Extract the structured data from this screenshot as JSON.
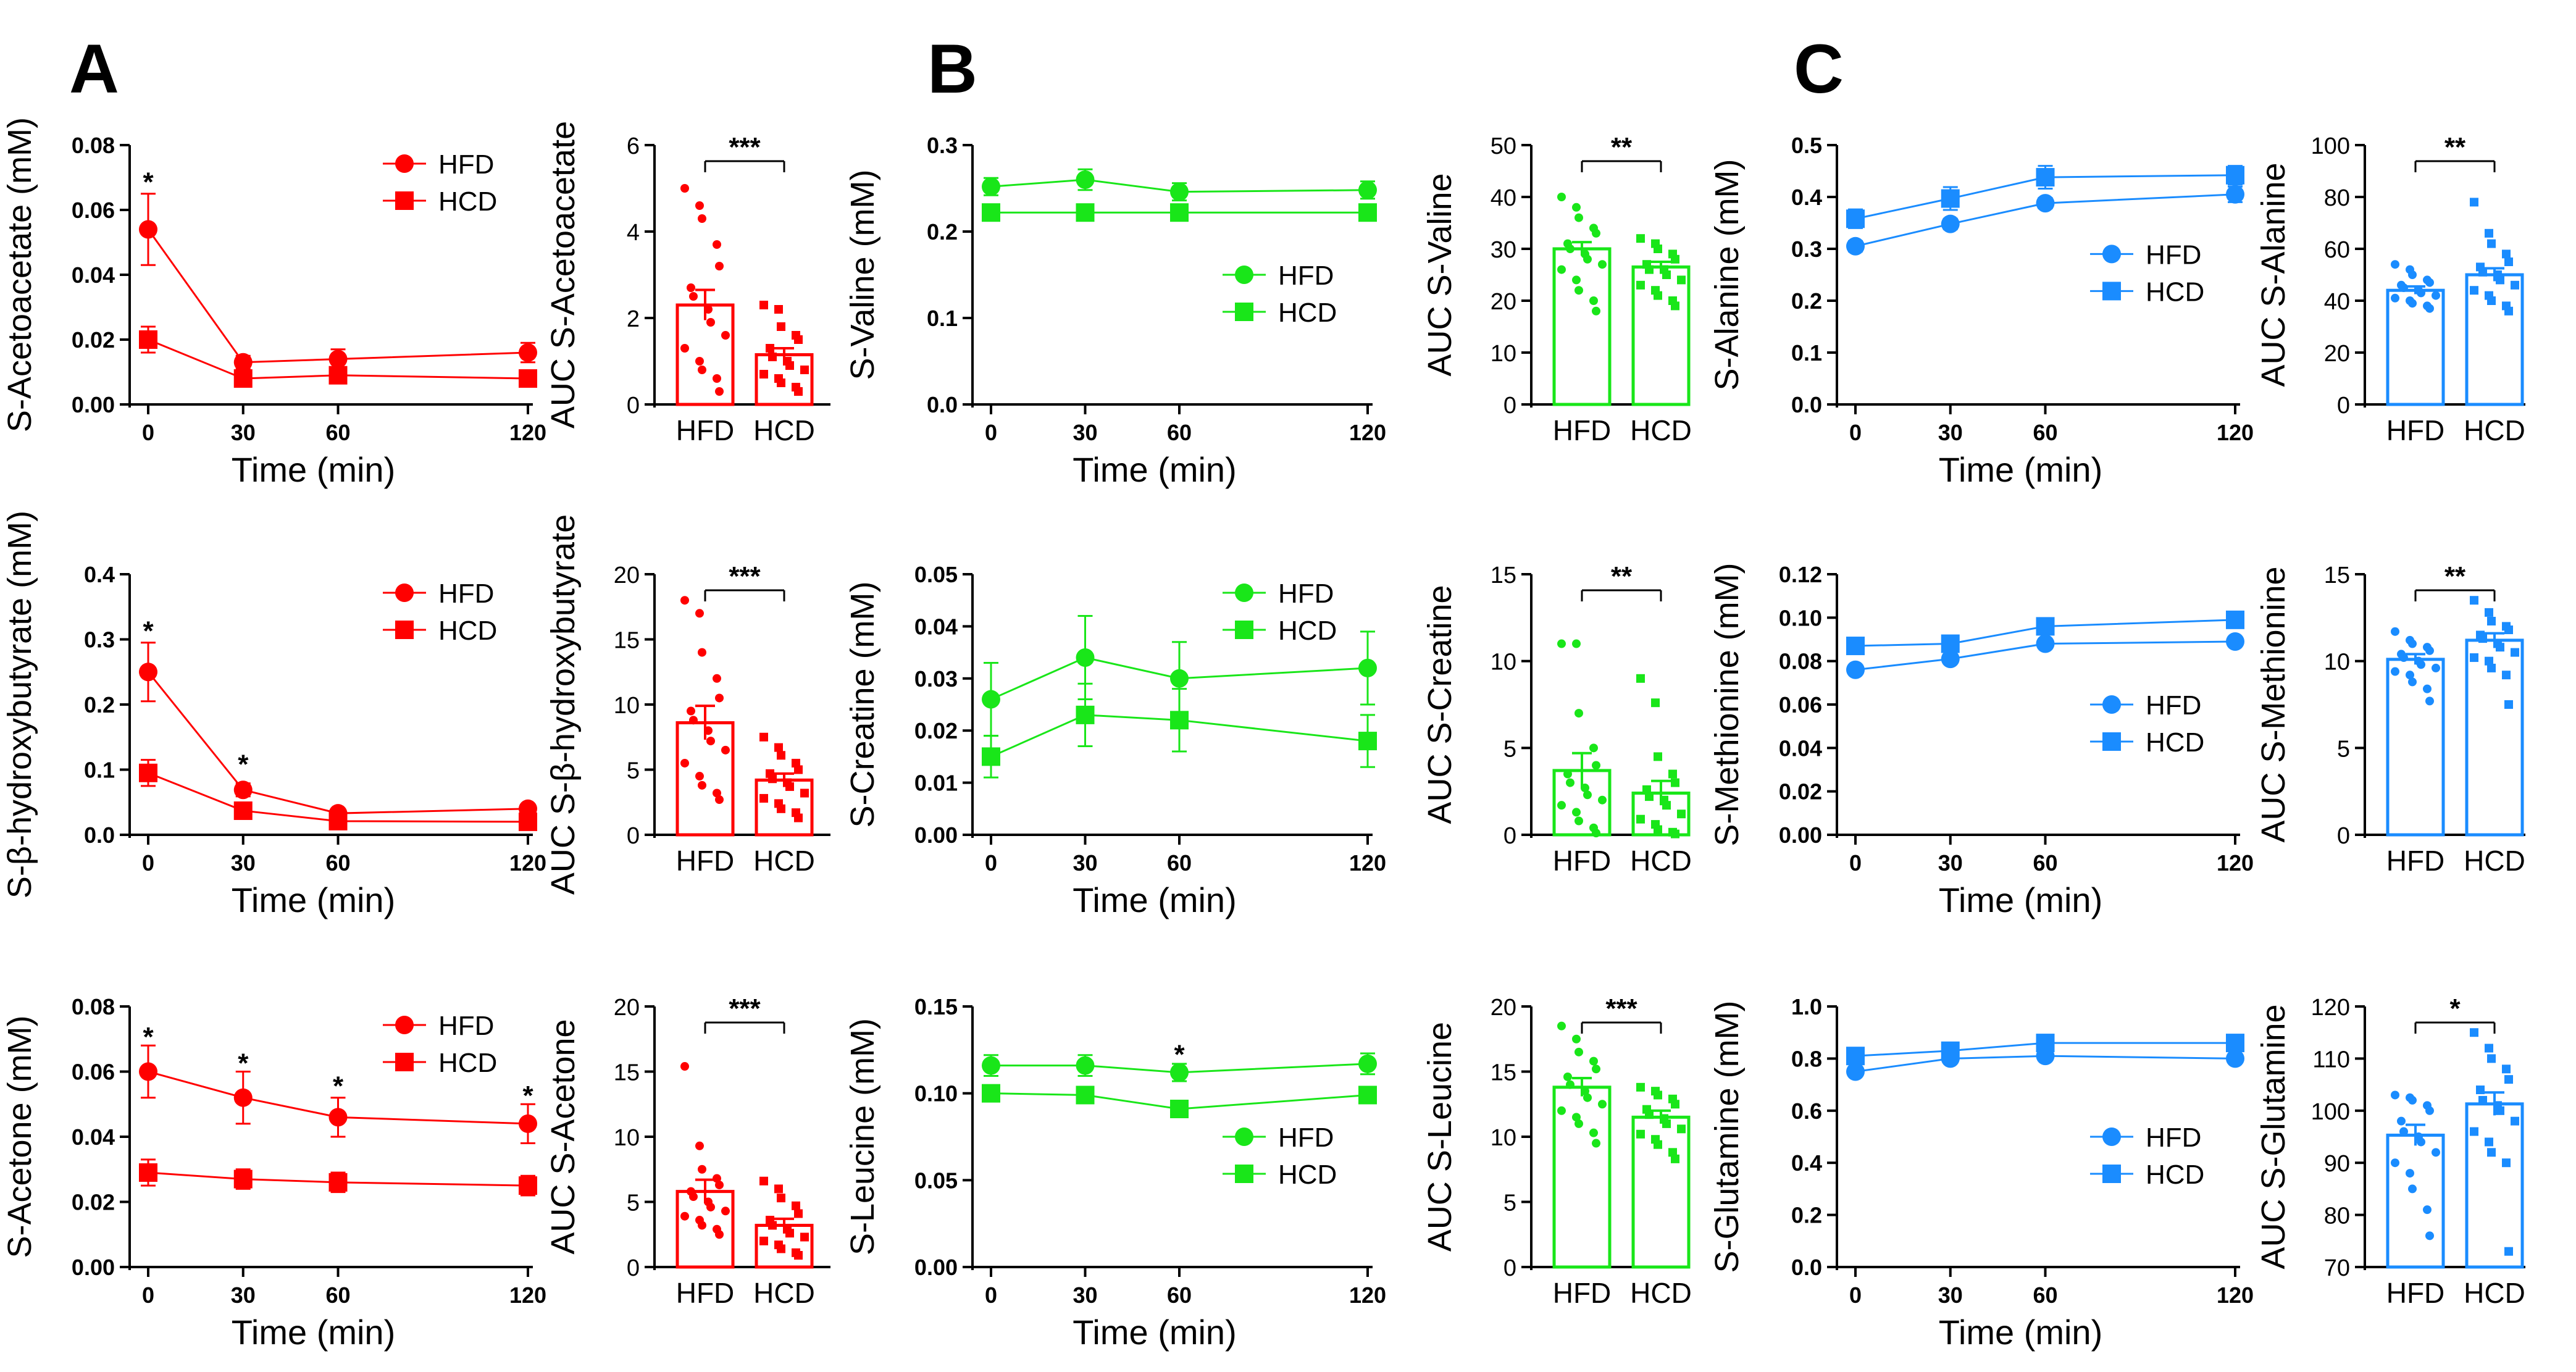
{
  "figure": {
    "panel_labels": [
      "A",
      "B",
      "C"
    ]
  },
  "colors": {
    "A": "#ff0000",
    "B": "#19e619",
    "C": "#1a8cff",
    "axis": "#000000"
  },
  "chart_data": [
    {
      "type": "line",
      "panel": "A",
      "row": 0,
      "ylabel": "S-Acetoacetate (mM)",
      "xlabel": "Time (min)",
      "x": [
        0,
        30,
        60,
        120
      ],
      "xticks": [
        "0",
        "30",
        "60",
        "120"
      ],
      "ylim": [
        0,
        0.08
      ],
      "yticks": [
        "0.00",
        "0.02",
        "0.04",
        "0.06",
        "0.08"
      ],
      "legend_pos": "top-right",
      "series": [
        {
          "name": "HFD",
          "marker": "circle",
          "values": [
            0.054,
            0.013,
            0.014,
            0.016
          ],
          "err": [
            0.011,
            0.002,
            0.003,
            0.003
          ]
        },
        {
          "name": "HCD",
          "marker": "square",
          "values": [
            0.02,
            0.008,
            0.009,
            0.008
          ],
          "err": [
            0.004,
            0.002,
            0.002,
            0.002
          ]
        }
      ],
      "annotations": [
        {
          "x": 0,
          "y": 0.07,
          "text": "*"
        }
      ]
    },
    {
      "type": "bar",
      "panel": "A",
      "row": 0,
      "ylabel": "AUC S-Acetoacetate",
      "categories": [
        "HFD",
        "HCD"
      ],
      "values": [
        2.3,
        1.15
      ],
      "err": [
        0.35,
        0.15
      ],
      "ylim": [
        0,
        6
      ],
      "yticks": [
        "0",
        "2",
        "4",
        "6"
      ],
      "points": [
        [
          5.0,
          4.6,
          4.3,
          3.7,
          3.2,
          2.7,
          2.5,
          2.2,
          1.9,
          1.6,
          1.3,
          1.0,
          0.8,
          0.6,
          0.3
        ],
        [
          2.3,
          2.2,
          1.8,
          1.6,
          1.5,
          1.3,
          1.1,
          1.0,
          0.9,
          0.8,
          0.7,
          0.6,
          0.5,
          0.4,
          0.3
        ]
      ],
      "significance": "***"
    },
    {
      "type": "line",
      "panel": "B",
      "row": 0,
      "ylabel": "S-Valine (mM)",
      "xlabel": "Time (min)",
      "x": [
        0,
        30,
        60,
        120
      ],
      "xticks": [
        "0",
        "30",
        "60",
        "120"
      ],
      "ylim": [
        0,
        0.3
      ],
      "yticks": [
        "0.0",
        "0.1",
        "0.2",
        "0.3"
      ],
      "legend_pos": "bottom-right",
      "series": [
        {
          "name": "HFD",
          "marker": "circle",
          "values": [
            0.252,
            0.26,
            0.246,
            0.248
          ],
          "err": [
            0.01,
            0.012,
            0.01,
            0.01
          ]
        },
        {
          "name": "HCD",
          "marker": "square",
          "values": [
            0.222,
            0.222,
            0.222,
            0.222
          ],
          "err": [
            0.008,
            0.008,
            0.008,
            0.008
          ]
        }
      ],
      "annotations": []
    },
    {
      "type": "bar",
      "panel": "B",
      "row": 0,
      "ylabel": "AUC S-Valine",
      "categories": [
        "HFD",
        "HCD"
      ],
      "values": [
        30,
        26.5
      ],
      "err": [
        1.3,
        1.0
      ],
      "ylim": [
        0,
        50
      ],
      "yticks": [
        "0",
        "10",
        "20",
        "30",
        "40",
        "50"
      ],
      "points": [
        [
          40,
          38,
          36,
          34,
          33,
          31,
          30,
          29,
          28,
          27,
          26,
          24,
          22,
          20,
          18
        ],
        [
          32,
          31,
          30,
          29,
          28,
          27,
          26,
          26,
          25,
          24,
          23,
          22,
          21,
          20,
          19
        ]
      ],
      "significance": "**"
    },
    {
      "type": "line",
      "panel": "C",
      "row": 0,
      "ylabel": "S-Alanine (mM)",
      "xlabel": "Time (min)",
      "x": [
        0,
        30,
        60,
        120
      ],
      "xticks": [
        "0",
        "30",
        "60",
        "120"
      ],
      "ylim": [
        0,
        0.5
      ],
      "yticks": [
        "0.0",
        "0.1",
        "0.2",
        "0.3",
        "0.4",
        "0.5"
      ],
      "legend_pos": "middle-right",
      "series": [
        {
          "name": "HFD",
          "marker": "circle",
          "values": [
            0.305,
            0.348,
            0.388,
            0.405
          ],
          "err": [
            0.01,
            0.01,
            0.01,
            0.015
          ]
        },
        {
          "name": "HCD",
          "marker": "square",
          "values": [
            0.358,
            0.397,
            0.438,
            0.442
          ],
          "err": [
            0.018,
            0.022,
            0.022,
            0.018
          ]
        }
      ],
      "annotations": []
    },
    {
      "type": "bar",
      "panel": "C",
      "row": 0,
      "ylabel": "AUC S-Alanine",
      "categories": [
        "HFD",
        "HCD"
      ],
      "values": [
        44,
        50
      ],
      "err": [
        1.5,
        2.5
      ],
      "ylim": [
        0,
        100
      ],
      "yticks": [
        "0",
        "20",
        "40",
        "60",
        "80",
        "100"
      ],
      "points": [
        [
          54,
          52,
          50,
          48,
          47,
          46,
          45,
          44,
          43,
          42,
          41,
          40,
          39,
          38,
          37
        ],
        [
          78,
          66,
          62,
          58,
          55,
          53,
          51,
          50,
          48,
          46,
          44,
          42,
          40,
          38,
          36
        ]
      ],
      "significance": "**"
    },
    {
      "type": "line",
      "panel": "A",
      "row": 1,
      "ylabel": "S-β-hydroxybutyrate (mM)",
      "xlabel": "Time (min)",
      "x": [
        0,
        30,
        60,
        120
      ],
      "xticks": [
        "0",
        "30",
        "60",
        "120"
      ],
      "ylim": [
        0,
        0.4
      ],
      "yticks": [
        "0.0",
        "0.1",
        "0.2",
        "0.3",
        "0.4"
      ],
      "legend_pos": "top-right",
      "series": [
        {
          "name": "HFD",
          "marker": "circle",
          "values": [
            0.25,
            0.069,
            0.033,
            0.04
          ],
          "err": [
            0.045,
            0.01,
            0.005,
            0.006
          ]
        },
        {
          "name": "HCD",
          "marker": "square",
          "values": [
            0.095,
            0.037,
            0.021,
            0.02
          ],
          "err": [
            0.02,
            0.007,
            0.004,
            0.004
          ]
        }
      ],
      "annotations": [
        {
          "x": 0,
          "y": 0.32,
          "text": "*"
        },
        {
          "x": 30,
          "y": 0.115,
          "text": "*"
        }
      ]
    },
    {
      "type": "bar",
      "panel": "A",
      "row": 1,
      "ylabel": "AUC S-β-hydroxybutyrate",
      "categories": [
        "HFD",
        "HCD"
      ],
      "values": [
        8.6,
        4.2
      ],
      "err": [
        1.3,
        0.5
      ],
      "ylim": [
        0,
        20
      ],
      "yticks": [
        "0",
        "5",
        "10",
        "15",
        "20"
      ],
      "points": [
        [
          18,
          17,
          14,
          12,
          10.5,
          9.5,
          8.8,
          8,
          7.2,
          6.5,
          5.5,
          4.5,
          3.8,
          3.2,
          2.7
        ],
        [
          7.5,
          6.7,
          6.1,
          5.5,
          5,
          4.7,
          4.3,
          4,
          3.7,
          3.2,
          2.8,
          2.4,
          2,
          1.7,
          1.3
        ]
      ],
      "significance": "***"
    },
    {
      "type": "line",
      "panel": "B",
      "row": 1,
      "ylabel": "S-Creatine (mM)",
      "xlabel": "Time (min)",
      "x": [
        0,
        30,
        60,
        120
      ],
      "xticks": [
        "0",
        "30",
        "60",
        "120"
      ],
      "ylim": [
        0,
        0.05
      ],
      "yticks": [
        "0.00",
        "0.01",
        "0.02",
        "0.03",
        "0.04",
        "0.05"
      ],
      "legend_pos": "top-right",
      "series": [
        {
          "name": "HFD",
          "marker": "circle",
          "values": [
            0.026,
            0.034,
            0.03,
            0.032
          ],
          "err": [
            0.007,
            0.008,
            0.007,
            0.007
          ]
        },
        {
          "name": "HCD",
          "marker": "square",
          "values": [
            0.015,
            0.023,
            0.022,
            0.018
          ],
          "err": [
            0.004,
            0.006,
            0.006,
            0.005
          ]
        }
      ],
      "annotations": []
    },
    {
      "type": "bar",
      "panel": "B",
      "row": 1,
      "ylabel": "AUC S-Creatine",
      "categories": [
        "HFD",
        "HCD"
      ],
      "values": [
        3.7,
        2.4
      ],
      "err": [
        1.0,
        0.7
      ],
      "ylim": [
        0,
        15
      ],
      "yticks": [
        "0",
        "5",
        "10",
        "15"
      ],
      "points": [
        [
          11,
          11,
          7,
          5,
          4,
          3.5,
          3,
          2.7,
          2.3,
          2,
          1.7,
          1.3,
          0.8,
          0.4,
          0.1
        ],
        [
          9,
          7.6,
          4.5,
          3.5,
          3,
          2.6,
          2.2,
          2,
          1.7,
          1.2,
          0.9,
          0.6,
          0.3,
          0.15,
          0.05
        ]
      ],
      "significance": "**"
    },
    {
      "type": "line",
      "panel": "C",
      "row": 1,
      "ylabel": "S-Methionine (mM)",
      "xlabel": "Time (min)",
      "x": [
        0,
        30,
        60,
        120
      ],
      "xticks": [
        "0",
        "30",
        "60",
        "120"
      ],
      "ylim": [
        0,
        0.12
      ],
      "yticks": [
        "0.00",
        "0.02",
        "0.04",
        "0.06",
        "0.08",
        "0.10",
        "0.12"
      ],
      "legend_pos": "bottom-right",
      "series": [
        {
          "name": "HFD",
          "marker": "circle",
          "values": [
            0.076,
            0.081,
            0.088,
            0.089
          ],
          "err": [
            0.002,
            0.002,
            0.002,
            0.002
          ]
        },
        {
          "name": "HCD",
          "marker": "square",
          "values": [
            0.087,
            0.088,
            0.096,
            0.099
          ],
          "err": [
            0.002,
            0.002,
            0.003,
            0.003
          ]
        }
      ],
      "annotations": []
    },
    {
      "type": "bar",
      "panel": "C",
      "row": 1,
      "ylabel": "AUC S-Methionine",
      "categories": [
        "HFD",
        "HCD"
      ],
      "values": [
        10.1,
        11.2
      ],
      "err": [
        0.3,
        0.4
      ],
      "ylim": [
        0,
        15
      ],
      "yticks": [
        "0",
        "5",
        "10",
        "15"
      ],
      "points": [
        [
          11.7,
          11.2,
          11,
          10.8,
          10.6,
          10.4,
          10.2,
          10,
          9.8,
          9.6,
          9.4,
          9.2,
          8.8,
          8.4,
          7.7
        ],
        [
          13.5,
          12.8,
          12.3,
          12,
          11.8,
          11.5,
          11.3,
          11,
          10.8,
          10.5,
          10.2,
          10,
          9.6,
          9.2,
          7.5
        ]
      ],
      "significance": "**"
    },
    {
      "type": "line",
      "panel": "A",
      "row": 2,
      "ylabel": "S-Acetone (mM)",
      "xlabel": "Time (min)",
      "x": [
        0,
        30,
        60,
        120
      ],
      "xticks": [
        "0",
        "30",
        "60",
        "120"
      ],
      "ylim": [
        0,
        0.08
      ],
      "yticks": [
        "0.00",
        "0.02",
        "0.04",
        "0.06",
        "0.08"
      ],
      "legend_pos": "top-right",
      "series": [
        {
          "name": "HFD",
          "marker": "circle",
          "values": [
            0.06,
            0.052,
            0.046,
            0.044
          ],
          "err": [
            0.008,
            0.008,
            0.006,
            0.006
          ]
        },
        {
          "name": "HCD",
          "marker": "square",
          "values": [
            0.029,
            0.027,
            0.026,
            0.025
          ],
          "err": [
            0.004,
            0.003,
            0.003,
            0.003
          ]
        }
      ],
      "annotations": [
        {
          "x": 0,
          "y": 0.072,
          "text": "*"
        },
        {
          "x": 30,
          "y": 0.064,
          "text": "*"
        },
        {
          "x": 60,
          "y": 0.057,
          "text": "*"
        },
        {
          "x": 120,
          "y": 0.054,
          "text": "*"
        }
      ]
    },
    {
      "type": "bar",
      "panel": "A",
      "row": 2,
      "ylabel": "AUC S-Acetone",
      "categories": [
        "HFD",
        "HCD"
      ],
      "values": [
        5.8,
        3.2
      ],
      "err": [
        0.9,
        0.5
      ],
      "ylim": [
        0,
        20
      ],
      "yticks": [
        "0",
        "5",
        "10",
        "15",
        "20"
      ],
      "points": [
        [
          15.4,
          9.3,
          7.5,
          6.8,
          6.3,
          5.8,
          5.4,
          5,
          4.6,
          4.3,
          3.9,
          3.6,
          3.2,
          2.9,
          2.5
        ],
        [
          6.6,
          6,
          5.3,
          4.7,
          4.1,
          3.6,
          3.2,
          2.9,
          2.6,
          2.3,
          2,
          1.7,
          1.4,
          1.1,
          0.9
        ]
      ],
      "significance": "***"
    },
    {
      "type": "line",
      "panel": "B",
      "row": 2,
      "ylabel": "S-Leucine (mM)",
      "xlabel": "Time (min)",
      "x": [
        0,
        30,
        60,
        120
      ],
      "xticks": [
        "0",
        "30",
        "60",
        "120"
      ],
      "ylim": [
        0,
        0.15
      ],
      "yticks": [
        "0.00",
        "0.05",
        "0.10",
        "0.15"
      ],
      "legend_pos": "bottom-right",
      "series": [
        {
          "name": "HFD",
          "marker": "circle",
          "values": [
            0.116,
            0.116,
            0.112,
            0.117
          ],
          "err": [
            0.006,
            0.006,
            0.005,
            0.006
          ]
        },
        {
          "name": "HCD",
          "marker": "square",
          "values": [
            0.1,
            0.099,
            0.091,
            0.099
          ],
          "err": [
            0.004,
            0.004,
            0.003,
            0.004
          ]
        }
      ],
      "annotations": [
        {
          "x": 60,
          "y": 0.125,
          "text": "*"
        }
      ]
    },
    {
      "type": "bar",
      "panel": "B",
      "row": 2,
      "ylabel": "AUC S-Leucine",
      "categories": [
        "HFD",
        "HCD"
      ],
      "values": [
        13.8,
        11.5
      ],
      "err": [
        0.7,
        0.5
      ],
      "ylim": [
        0,
        20
      ],
      "yticks": [
        "0",
        "5",
        "10",
        "15",
        "20"
      ],
      "points": [
        [
          18.5,
          17.5,
          16.5,
          15.8,
          15.2,
          14.6,
          14,
          13.5,
          13,
          12.5,
          12,
          11.5,
          11,
          10.3,
          9.5
        ],
        [
          13.8,
          13.5,
          13.2,
          12.9,
          12.5,
          12.1,
          11.7,
          11.4,
          11,
          10.6,
          10.2,
          9.8,
          9.4,
          8.8,
          8.3
        ]
      ],
      "significance": "***"
    },
    {
      "type": "line",
      "panel": "C",
      "row": 2,
      "ylabel": "S-Glutamine (mM)",
      "xlabel": "Time (min)",
      "x": [
        0,
        30,
        60,
        120
      ],
      "xticks": [
        "0",
        "30",
        "60",
        "120"
      ],
      "ylim": [
        0,
        1.0
      ],
      "yticks": [
        "0.0",
        "0.2",
        "0.4",
        "0.6",
        "0.8",
        "1.0"
      ],
      "legend_pos": "bottom-right",
      "series": [
        {
          "name": "HFD",
          "marker": "circle",
          "values": [
            0.75,
            0.8,
            0.81,
            0.8
          ],
          "err": [
            0.012,
            0.012,
            0.012,
            0.012
          ]
        },
        {
          "name": "HCD",
          "marker": "square",
          "values": [
            0.81,
            0.83,
            0.86,
            0.86
          ],
          "err": [
            0.012,
            0.012,
            0.012,
            0.012
          ]
        }
      ],
      "annotations": []
    },
    {
      "type": "bar",
      "panel": "C",
      "row": 2,
      "ylabel": "AUC S-Glutamine",
      "categories": [
        "HFD",
        "HCD"
      ],
      "values": [
        95.3,
        101.3
      ],
      "err": [
        2.0,
        2.2
      ],
      "ylim": [
        70,
        120
      ],
      "yticks": [
        "70",
        "80",
        "90",
        "100",
        "110",
        "120"
      ],
      "points": [
        [
          103,
          102.5,
          102,
          101,
          100,
          98,
          96,
          95,
          94,
          92,
          90,
          88,
          85,
          81,
          76
        ],
        [
          115,
          112,
          110,
          108,
          106,
          104,
          102,
          101,
          100,
          98,
          96,
          94,
          92,
          90,
          73
        ]
      ],
      "significance": "*"
    }
  ]
}
